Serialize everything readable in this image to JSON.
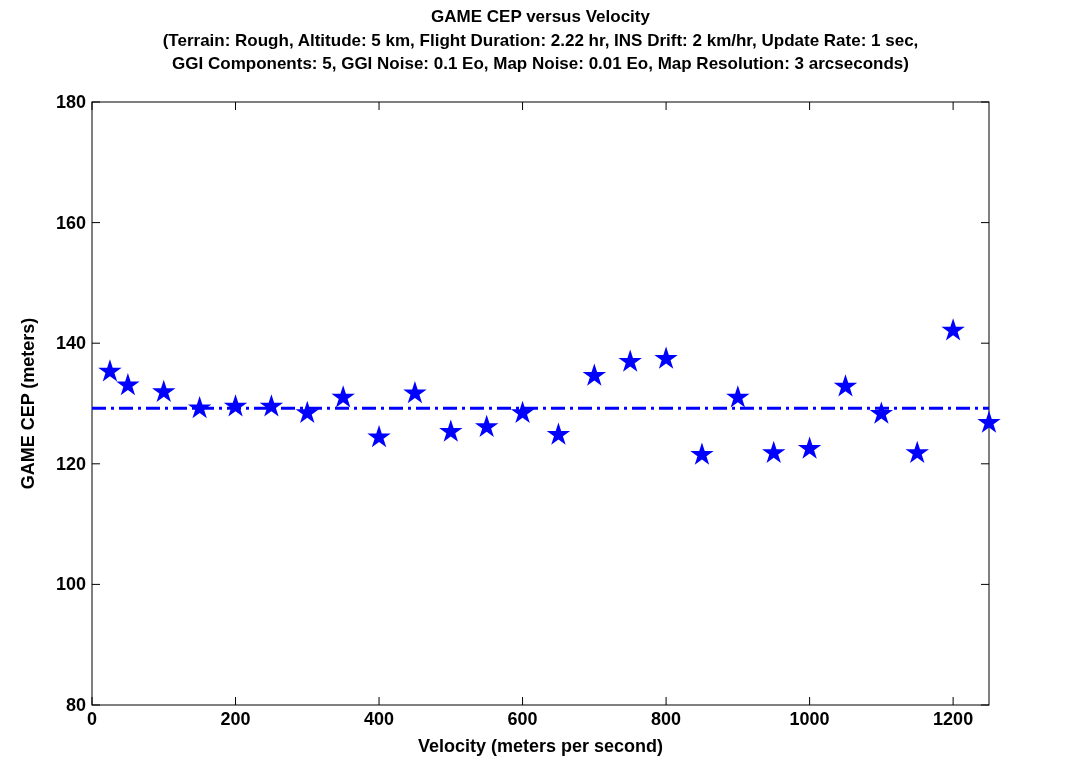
{
  "chart_data": {
    "type": "scatter",
    "title": "GAME CEP versus Velocity",
    "subtitle": "(Terrain: Rough, Altitude: 5 km, Flight Duration: 2.22 hr, INS Drift: 2 km/hr, Update Rate: 1 sec,\nGGI Components: 5, GGI Noise: 0.1 Eo, Map Noise: 0.01 Eo, Map Resolution: 3 arcseconds)",
    "xlabel": "Velocity (meters per second)",
    "ylabel": "GAME CEP (meters)",
    "x": [
      25,
      50,
      100,
      150,
      200,
      250,
      300,
      350,
      400,
      450,
      500,
      550,
      600,
      650,
      700,
      750,
      800,
      850,
      900,
      950,
      1000,
      1050,
      1100,
      1150,
      1200,
      1250
    ],
    "series": [
      {
        "color": "#0000ff",
        "values": [
          135.3,
          133.0,
          131.9,
          129.2,
          129.5,
          129.5,
          128.4,
          131.0,
          124.4,
          131.7,
          125.3,
          126.1,
          128.4,
          124.8,
          134.6,
          136.9,
          137.4,
          121.5,
          131.0,
          121.8,
          122.5,
          132.8,
          128.3,
          121.8,
          142.1,
          126.8
        ]
      }
    ],
    "ref_lines": [
      {
        "axis": "y",
        "value": 129.2,
        "color": "#0000ff",
        "line_style": "dashed"
      }
    ],
    "marker": "star",
    "xlim": [
      0,
      1250
    ],
    "ylim": [
      80,
      180
    ],
    "xticks": [
      0,
      200,
      400,
      600,
      800,
      1000,
      1200
    ],
    "yticks": [
      80,
      100,
      120,
      140,
      160,
      180
    ],
    "grid": false
  }
}
